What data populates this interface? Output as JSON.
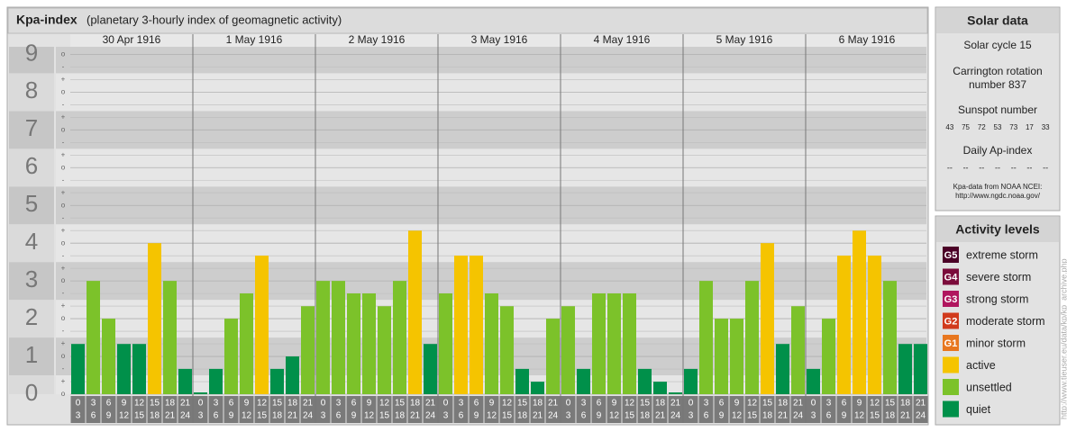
{
  "chart_data": {
    "type": "bar",
    "title": "Kpa-index",
    "subtitle": "(planetary 3-hourly index of geomagnetic activity)",
    "days": [
      "30 Apr 1916",
      "1 May 1916",
      "2 May 1916",
      "3 May 1916",
      "4 May 1916",
      "5 May 1916",
      "6 May 1916"
    ],
    "hours": [
      [
        "0",
        "3"
      ],
      [
        "3",
        "6"
      ],
      [
        "6",
        "9"
      ],
      [
        "9",
        "12"
      ],
      [
        "12",
        "15"
      ],
      [
        "15",
        "18"
      ],
      [
        "18",
        "21"
      ],
      [
        "21",
        "24"
      ]
    ],
    "values": [
      [
        1.33,
        3,
        2,
        1.33,
        1.33,
        4,
        3,
        0.67
      ],
      [
        0,
        0.67,
        2,
        2.67,
        3.67,
        0.67,
        1,
        2.33
      ],
      [
        3,
        3,
        2.67,
        2.67,
        2.33,
        3,
        4.33,
        1.33
      ],
      [
        2.67,
        3.67,
        3.67,
        2.67,
        2.33,
        0.67,
        0.33,
        2
      ],
      [
        2.33,
        0.67,
        2.67,
        2.67,
        2.67,
        0.67,
        0.33,
        0
      ],
      [
        0.67,
        3,
        2,
        2,
        3,
        4,
        1.33,
        2.33
      ],
      [
        0.67,
        2,
        3.67,
        4.33,
        3.67,
        3,
        1.33,
        1.33
      ]
    ],
    "colors": [
      [
        "#00904a",
        "#7cc22a",
        "#7cc22a",
        "#00904a",
        "#00904a",
        "#f5c400",
        "#7cc22a",
        "#00904a"
      ],
      [
        "#00904a",
        "#00904a",
        "#7cc22a",
        "#7cc22a",
        "#f5c400",
        "#00904a",
        "#00904a",
        "#7cc22a"
      ],
      [
        "#7cc22a",
        "#7cc22a",
        "#7cc22a",
        "#7cc22a",
        "#7cc22a",
        "#7cc22a",
        "#f5c400",
        "#00904a"
      ],
      [
        "#7cc22a",
        "#f5c400",
        "#f5c400",
        "#7cc22a",
        "#7cc22a",
        "#00904a",
        "#00904a",
        "#7cc22a"
      ],
      [
        "#7cc22a",
        "#00904a",
        "#7cc22a",
        "#7cc22a",
        "#7cc22a",
        "#00904a",
        "#00904a",
        "#00904a"
      ],
      [
        "#00904a",
        "#7cc22a",
        "#7cc22a",
        "#7cc22a",
        "#7cc22a",
        "#f5c400",
        "#00904a",
        "#7cc22a"
      ],
      [
        "#00904a",
        "#7cc22a",
        "#f5c400",
        "#f5c400",
        "#f5c400",
        "#7cc22a",
        "#00904a",
        "#00904a"
      ]
    ],
    "ylim": [
      0,
      9.2
    ],
    "yticks": [
      0,
      1,
      2,
      3,
      4,
      5,
      6,
      7,
      8,
      9
    ],
    "sublevel_labels": [
      "o",
      "+",
      "-"
    ],
    "grid": true
  },
  "solar_data": {
    "title": "Solar data",
    "cycle": "Solar cycle 15",
    "carrington": [
      "Carrington rotation",
      "number 837"
    ],
    "sunspot_title": "Sunspot number",
    "sunspots": [
      43,
      75,
      72,
      53,
      73,
      17,
      33
    ],
    "ap_title": "Daily Ap-index",
    "ap": [
      "--",
      "--",
      "--",
      "--",
      "--",
      "--",
      "--"
    ],
    "source": [
      "Kpa-data from NOAA NCEI:",
      "http://www.ngdc.noaa.gov/"
    ]
  },
  "activity_levels": {
    "title": "Activity levels",
    "items": [
      {
        "badge": "G5",
        "label": "extreme storm",
        "color": "#4b0026"
      },
      {
        "badge": "G4",
        "label": "severe storm",
        "color": "#7b0c3b"
      },
      {
        "badge": "G3",
        "label": "strong storm",
        "color": "#b0155e"
      },
      {
        "badge": "G2",
        "label": "moderate storm",
        "color": "#d13a1c"
      },
      {
        "badge": "G1",
        "label": "minor storm",
        "color": "#e8771f"
      },
      {
        "label": "active",
        "color": "#f5c400"
      },
      {
        "label": "unsettled",
        "color": "#7cc22a"
      },
      {
        "label": "quiet",
        "color": "#00904a"
      }
    ]
  },
  "side_url": "http://www.tieuser.eu/data/kp/kp_archive.php"
}
